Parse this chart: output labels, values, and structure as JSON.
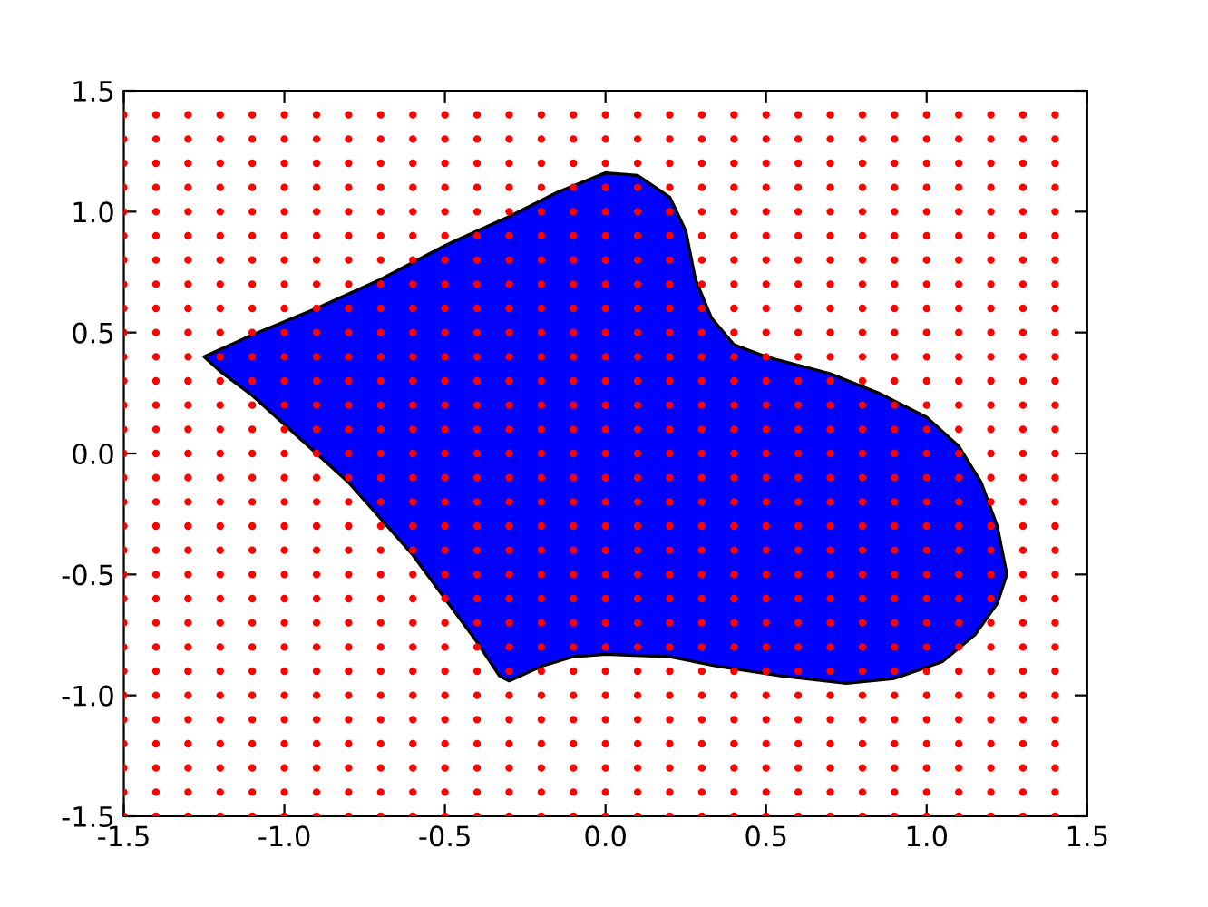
{
  "chart_data": {
    "type": "scatter",
    "marker": "circle",
    "grid": false,
    "xlim": [
      -1.5,
      1.5
    ],
    "ylim": [
      -1.5,
      1.5
    ],
    "xticks": [
      {
        "value": -1.5,
        "label": "-1.5"
      },
      {
        "value": -1.0,
        "label": "-1.0"
      },
      {
        "value": -0.5,
        "label": "-0.5"
      },
      {
        "value": 0,
        "label": "0.0"
      },
      {
        "value": 0.5,
        "label": "0.5"
      },
      {
        "value": 1.0,
        "label": "1.0"
      },
      {
        "value": 1.5,
        "label": "1.5"
      }
    ],
    "yticks": [
      {
        "value": -1.5,
        "label": "-1.5"
      },
      {
        "value": -1.0,
        "label": "-1.0"
      },
      {
        "value": -0.5,
        "label": "-0.5"
      },
      {
        "value": 0,
        "label": "0.0"
      },
      {
        "value": 0.5,
        "label": "0.5"
      },
      {
        "value": 1.0,
        "label": "1.0"
      },
      {
        "value": 1.5,
        "label": "1.5"
      }
    ],
    "x": [
      -1.5,
      -1.4,
      -1.3,
      -1.2,
      -1.1,
      -1.0,
      -0.9,
      -0.8,
      -0.7,
      -0.6,
      -0.5,
      -0.4,
      -0.3,
      -0.2,
      -0.1,
      0.0,
      0.1,
      0.2,
      0.3,
      0.4,
      0.5,
      0.6,
      0.7,
      0.8,
      0.9,
      1.0,
      1.1,
      1.2,
      1.3,
      1.4
    ],
    "series": [
      {
        "type": "area",
        "marker": "none",
        "color": "#0000ff",
        "x": [
          -1.25,
          -1.1,
          -0.9,
          -0.7,
          -0.5,
          -0.3,
          -0.15,
          0.0,
          0.1,
          0.2,
          0.25,
          0.28,
          0.33,
          0.4,
          0.5,
          0.7,
          0.85,
          1.0,
          1.1,
          1.17,
          1.22,
          1.25,
          1.22,
          1.15,
          1.05,
          0.9,
          0.75,
          0.55,
          0.35,
          0.2,
          0.0,
          -0.1,
          -0.2,
          -0.3,
          -0.33,
          -0.4,
          -0.5,
          -0.6,
          -0.7,
          -0.8,
          -0.9,
          -1.0,
          -1.1,
          -1.2
        ],
        "values": [
          0.4,
          0.49,
          0.6,
          0.72,
          0.86,
          0.98,
          1.08,
          1.16,
          1.15,
          1.06,
          0.92,
          0.72,
          0.56,
          0.45,
          0.4,
          0.33,
          0.25,
          0.15,
          0.03,
          -0.12,
          -0.3,
          -0.5,
          -0.62,
          -0.75,
          -0.86,
          -0.93,
          -0.95,
          -0.92,
          -0.88,
          -0.84,
          -0.83,
          -0.84,
          -0.88,
          -0.94,
          -0.92,
          -0.78,
          -0.6,
          -0.42,
          -0.27,
          -0.12,
          0.0,
          0.12,
          0.24,
          0.34
        ]
      },
      {
        "color": "#ff0000",
        "values": [
          -1.5,
          -1.5,
          -1.5,
          -1.5,
          -1.5,
          -1.5,
          -1.5,
          -1.5,
          -1.5,
          -1.5,
          -1.5,
          -1.5,
          -1.5,
          -1.5,
          -1.5,
          -1.5,
          -1.5,
          -1.5,
          -1.5,
          -1.5,
          -1.5,
          -1.5,
          -1.5,
          -1.5,
          -1.5,
          -1.5,
          -1.5,
          -1.5,
          -1.5,
          -1.5
        ]
      },
      {
        "color": "#ff0000",
        "values": [
          -1.4,
          -1.4,
          -1.4,
          -1.4,
          -1.4,
          -1.4,
          -1.4,
          -1.4,
          -1.4,
          -1.4,
          -1.4,
          -1.4,
          -1.4,
          -1.4,
          -1.4,
          -1.4,
          -1.4,
          -1.4,
          -1.4,
          -1.4,
          -1.4,
          -1.4,
          -1.4,
          -1.4,
          -1.4,
          -1.4,
          -1.4,
          -1.4,
          -1.4,
          -1.4
        ]
      },
      {
        "color": "#ff0000",
        "values": [
          -1.3,
          -1.3,
          -1.3,
          -1.3,
          -1.3,
          -1.3,
          -1.3,
          -1.3,
          -1.3,
          -1.3,
          -1.3,
          -1.3,
          -1.3,
          -1.3,
          -1.3,
          -1.3,
          -1.3,
          -1.3,
          -1.3,
          -1.3,
          -1.3,
          -1.3,
          -1.3,
          -1.3,
          -1.3,
          -1.3,
          -1.3,
          -1.3,
          -1.3,
          -1.3
        ]
      },
      {
        "color": "#ff0000",
        "values": [
          -1.2,
          -1.2,
          -1.2,
          -1.2,
          -1.2,
          -1.2,
          -1.2,
          -1.2,
          -1.2,
          -1.2,
          -1.2,
          -1.2,
          -1.2,
          -1.2,
          -1.2,
          -1.2,
          -1.2,
          -1.2,
          -1.2,
          -1.2,
          -1.2,
          -1.2,
          -1.2,
          -1.2,
          -1.2,
          -1.2,
          -1.2,
          -1.2,
          -1.2,
          -1.2
        ]
      },
      {
        "color": "#ff0000",
        "values": [
          -1.1,
          -1.1,
          -1.1,
          -1.1,
          -1.1,
          -1.1,
          -1.1,
          -1.1,
          -1.1,
          -1.1,
          -1.1,
          -1.1,
          -1.1,
          -1.1,
          -1.1,
          -1.1,
          -1.1,
          -1.1,
          -1.1,
          -1.1,
          -1.1,
          -1.1,
          -1.1,
          -1.1,
          -1.1,
          -1.1,
          -1.1,
          -1.1,
          -1.1,
          -1.1
        ]
      },
      {
        "color": "#ff0000",
        "values": [
          -1.0,
          -1.0,
          -1.0,
          -1.0,
          -1.0,
          -1.0,
          -1.0,
          -1.0,
          -1.0,
          -1.0,
          -1.0,
          -1.0,
          -1.0,
          -1.0,
          -1.0,
          -1.0,
          -1.0,
          -1.0,
          -1.0,
          -1.0,
          -1.0,
          -1.0,
          -1.0,
          -1.0,
          -1.0,
          -1.0,
          -1.0,
          -1.0,
          -1.0,
          -1.0
        ]
      },
      {
        "color": "#ff0000",
        "values": [
          -0.9,
          -0.9,
          -0.9,
          -0.9,
          -0.9,
          -0.9,
          -0.9,
          -0.9,
          -0.9,
          -0.9,
          -0.9,
          -0.9,
          -0.9,
          -0.9,
          -0.9,
          -0.9,
          -0.9,
          -0.9,
          -0.9,
          -0.9,
          -0.9,
          -0.9,
          -0.9,
          -0.9,
          -0.9,
          -0.9,
          -0.9,
          -0.9,
          -0.9,
          -0.9
        ]
      },
      {
        "color": "#ff0000",
        "values": [
          -0.8,
          -0.8,
          -0.8,
          -0.8,
          -0.8,
          -0.8,
          -0.8,
          -0.8,
          -0.8,
          -0.8,
          -0.8,
          -0.8,
          -0.8,
          -0.8,
          -0.8,
          -0.8,
          -0.8,
          -0.8,
          -0.8,
          -0.8,
          -0.8,
          -0.8,
          -0.8,
          -0.8,
          -0.8,
          -0.8,
          -0.8,
          -0.8,
          -0.8,
          -0.8
        ]
      },
      {
        "color": "#ff0000",
        "values": [
          -0.7,
          -0.7,
          -0.7,
          -0.7,
          -0.7,
          -0.7,
          -0.7,
          -0.7,
          -0.7,
          -0.7,
          -0.7,
          -0.7,
          -0.7,
          -0.7,
          -0.7,
          -0.7,
          -0.7,
          -0.7,
          -0.7,
          -0.7,
          -0.7,
          -0.7,
          -0.7,
          -0.7,
          -0.7,
          -0.7,
          -0.7,
          -0.7,
          -0.7,
          -0.7
        ]
      },
      {
        "color": "#ff0000",
        "values": [
          -0.6,
          -0.6,
          -0.6,
          -0.6,
          -0.6,
          -0.6,
          -0.6,
          -0.6,
          -0.6,
          -0.6,
          -0.6,
          -0.6,
          -0.6,
          -0.6,
          -0.6,
          -0.6,
          -0.6,
          -0.6,
          -0.6,
          -0.6,
          -0.6,
          -0.6,
          -0.6,
          -0.6,
          -0.6,
          -0.6,
          -0.6,
          -0.6,
          -0.6,
          -0.6
        ]
      },
      {
        "color": "#ff0000",
        "values": [
          -0.5,
          -0.5,
          -0.5,
          -0.5,
          -0.5,
          -0.5,
          -0.5,
          -0.5,
          -0.5,
          -0.5,
          -0.5,
          -0.5,
          -0.5,
          -0.5,
          -0.5,
          -0.5,
          -0.5,
          -0.5,
          -0.5,
          -0.5,
          -0.5,
          -0.5,
          -0.5,
          -0.5,
          -0.5,
          -0.5,
          -0.5,
          -0.5,
          -0.5,
          -0.5
        ]
      },
      {
        "color": "#ff0000",
        "values": [
          -0.4,
          -0.4,
          -0.4,
          -0.4,
          -0.4,
          -0.4,
          -0.4,
          -0.4,
          -0.4,
          -0.4,
          -0.4,
          -0.4,
          -0.4,
          -0.4,
          -0.4,
          -0.4,
          -0.4,
          -0.4,
          -0.4,
          -0.4,
          -0.4,
          -0.4,
          -0.4,
          -0.4,
          -0.4,
          -0.4,
          -0.4,
          -0.4,
          -0.4,
          -0.4
        ]
      },
      {
        "color": "#ff0000",
        "values": [
          -0.3,
          -0.3,
          -0.3,
          -0.3,
          -0.3,
          -0.3,
          -0.3,
          -0.3,
          -0.3,
          -0.3,
          -0.3,
          -0.3,
          -0.3,
          -0.3,
          -0.3,
          -0.3,
          -0.3,
          -0.3,
          -0.3,
          -0.3,
          -0.3,
          -0.3,
          -0.3,
          -0.3,
          -0.3,
          -0.3,
          -0.3,
          -0.3,
          -0.3,
          -0.3
        ]
      },
      {
        "color": "#ff0000",
        "values": [
          -0.2,
          -0.2,
          -0.2,
          -0.2,
          -0.2,
          -0.2,
          -0.2,
          -0.2,
          -0.2,
          -0.2,
          -0.2,
          -0.2,
          -0.2,
          -0.2,
          -0.2,
          -0.2,
          -0.2,
          -0.2,
          -0.2,
          -0.2,
          -0.2,
          -0.2,
          -0.2,
          -0.2,
          -0.2,
          -0.2,
          -0.2,
          -0.2,
          -0.2,
          -0.2
        ]
      },
      {
        "color": "#ff0000",
        "values": [
          -0.1,
          -0.1,
          -0.1,
          -0.1,
          -0.1,
          -0.1,
          -0.1,
          -0.1,
          -0.1,
          -0.1,
          -0.1,
          -0.1,
          -0.1,
          -0.1,
          -0.1,
          -0.1,
          -0.1,
          -0.1,
          -0.1,
          -0.1,
          -0.1,
          -0.1,
          -0.1,
          -0.1,
          -0.1,
          -0.1,
          -0.1,
          -0.1,
          -0.1,
          -0.1
        ]
      },
      {
        "color": "#ff0000",
        "values": [
          0.0,
          0.0,
          0.0,
          0.0,
          0.0,
          0.0,
          0.0,
          0.0,
          0.0,
          0.0,
          0.0,
          0.0,
          0.0,
          0.0,
          0.0,
          0.0,
          0.0,
          0.0,
          0.0,
          0.0,
          0.0,
          0.0,
          0.0,
          0.0,
          0.0,
          0.0,
          0.0,
          0.0,
          0.0,
          0.0
        ]
      },
      {
        "color": "#ff0000",
        "values": [
          0.1,
          0.1,
          0.1,
          0.1,
          0.1,
          0.1,
          0.1,
          0.1,
          0.1,
          0.1,
          0.1,
          0.1,
          0.1,
          0.1,
          0.1,
          0.1,
          0.1,
          0.1,
          0.1,
          0.1,
          0.1,
          0.1,
          0.1,
          0.1,
          0.1,
          0.1,
          0.1,
          0.1,
          0.1,
          0.1
        ]
      },
      {
        "color": "#ff0000",
        "values": [
          0.2,
          0.2,
          0.2,
          0.2,
          0.2,
          0.2,
          0.2,
          0.2,
          0.2,
          0.2,
          0.2,
          0.2,
          0.2,
          0.2,
          0.2,
          0.2,
          0.2,
          0.2,
          0.2,
          0.2,
          0.2,
          0.2,
          0.2,
          0.2,
          0.2,
          0.2,
          0.2,
          0.2,
          0.2,
          0.2
        ]
      },
      {
        "color": "#ff0000",
        "values": [
          0.3,
          0.3,
          0.3,
          0.3,
          0.3,
          0.3,
          0.3,
          0.3,
          0.3,
          0.3,
          0.3,
          0.3,
          0.3,
          0.3,
          0.3,
          0.3,
          0.3,
          0.3,
          0.3,
          0.3,
          0.3,
          0.3,
          0.3,
          0.3,
          0.3,
          0.3,
          0.3,
          0.3,
          0.3,
          0.3
        ]
      },
      {
        "color": "#ff0000",
        "values": [
          0.4,
          0.4,
          0.4,
          0.4,
          0.4,
          0.4,
          0.4,
          0.4,
          0.4,
          0.4,
          0.4,
          0.4,
          0.4,
          0.4,
          0.4,
          0.4,
          0.4,
          0.4,
          0.4,
          0.4,
          0.4,
          0.4,
          0.4,
          0.4,
          0.4,
          0.4,
          0.4,
          0.4,
          0.4,
          0.4
        ]
      },
      {
        "color": "#ff0000",
        "values": [
          0.5,
          0.5,
          0.5,
          0.5,
          0.5,
          0.5,
          0.5,
          0.5,
          0.5,
          0.5,
          0.5,
          0.5,
          0.5,
          0.5,
          0.5,
          0.5,
          0.5,
          0.5,
          0.5,
          0.5,
          0.5,
          0.5,
          0.5,
          0.5,
          0.5,
          0.5,
          0.5,
          0.5,
          0.5,
          0.5
        ]
      },
      {
        "color": "#ff0000",
        "values": [
          0.6,
          0.6,
          0.6,
          0.6,
          0.6,
          0.6,
          0.6,
          0.6,
          0.6,
          0.6,
          0.6,
          0.6,
          0.6,
          0.6,
          0.6,
          0.6,
          0.6,
          0.6,
          0.6,
          0.6,
          0.6,
          0.6,
          0.6,
          0.6,
          0.6,
          0.6,
          0.6,
          0.6,
          0.6,
          0.6
        ]
      },
      {
        "color": "#ff0000",
        "values": [
          0.7,
          0.7,
          0.7,
          0.7,
          0.7,
          0.7,
          0.7,
          0.7,
          0.7,
          0.7,
          0.7,
          0.7,
          0.7,
          0.7,
          0.7,
          0.7,
          0.7,
          0.7,
          0.7,
          0.7,
          0.7,
          0.7,
          0.7,
          0.7,
          0.7,
          0.7,
          0.7,
          0.7,
          0.7,
          0.7
        ]
      },
      {
        "color": "#ff0000",
        "values": [
          0.8,
          0.8,
          0.8,
          0.8,
          0.8,
          0.8,
          0.8,
          0.8,
          0.8,
          0.8,
          0.8,
          0.8,
          0.8,
          0.8,
          0.8,
          0.8,
          0.8,
          0.8,
          0.8,
          0.8,
          0.8,
          0.8,
          0.8,
          0.8,
          0.8,
          0.8,
          0.8,
          0.8,
          0.8,
          0.8
        ]
      },
      {
        "color": "#ff0000",
        "values": [
          0.9,
          0.9,
          0.9,
          0.9,
          0.9,
          0.9,
          0.9,
          0.9,
          0.9,
          0.9,
          0.9,
          0.9,
          0.9,
          0.9,
          0.9,
          0.9,
          0.9,
          0.9,
          0.9,
          0.9,
          0.9,
          0.9,
          0.9,
          0.9,
          0.9,
          0.9,
          0.9,
          0.9,
          0.9,
          0.9
        ]
      },
      {
        "color": "#ff0000",
        "values": [
          1.0,
          1.0,
          1.0,
          1.0,
          1.0,
          1.0,
          1.0,
          1.0,
          1.0,
          1.0,
          1.0,
          1.0,
          1.0,
          1.0,
          1.0,
          1.0,
          1.0,
          1.0,
          1.0,
          1.0,
          1.0,
          1.0,
          1.0,
          1.0,
          1.0,
          1.0,
          1.0,
          1.0,
          1.0,
          1.0
        ]
      },
      {
        "color": "#ff0000",
        "values": [
          1.1,
          1.1,
          1.1,
          1.1,
          1.1,
          1.1,
          1.1,
          1.1,
          1.1,
          1.1,
          1.1,
          1.1,
          1.1,
          1.1,
          1.1,
          1.1,
          1.1,
          1.1,
          1.1,
          1.1,
          1.1,
          1.1,
          1.1,
          1.1,
          1.1,
          1.1,
          1.1,
          1.1,
          1.1,
          1.1
        ]
      },
      {
        "color": "#ff0000",
        "values": [
          1.2,
          1.2,
          1.2,
          1.2,
          1.2,
          1.2,
          1.2,
          1.2,
          1.2,
          1.2,
          1.2,
          1.2,
          1.2,
          1.2,
          1.2,
          1.2,
          1.2,
          1.2,
          1.2,
          1.2,
          1.2,
          1.2,
          1.2,
          1.2,
          1.2,
          1.2,
          1.2,
          1.2,
          1.2,
          1.2
        ]
      },
      {
        "color": "#ff0000",
        "values": [
          1.3,
          1.3,
          1.3,
          1.3,
          1.3,
          1.3,
          1.3,
          1.3,
          1.3,
          1.3,
          1.3,
          1.3,
          1.3,
          1.3,
          1.3,
          1.3,
          1.3,
          1.3,
          1.3,
          1.3,
          1.3,
          1.3,
          1.3,
          1.3,
          1.3,
          1.3,
          1.3,
          1.3,
          1.3,
          1.3
        ]
      },
      {
        "color": "#ff0000",
        "values": [
          1.4,
          1.4,
          1.4,
          1.4,
          1.4,
          1.4,
          1.4,
          1.4,
          1.4,
          1.4,
          1.4,
          1.4,
          1.4,
          1.4,
          1.4,
          1.4,
          1.4,
          1.4,
          1.4,
          1.4,
          1.4,
          1.4,
          1.4,
          1.4,
          1.4,
          1.4,
          1.4,
          1.4,
          1.4,
          1.4
        ]
      }
    ]
  }
}
